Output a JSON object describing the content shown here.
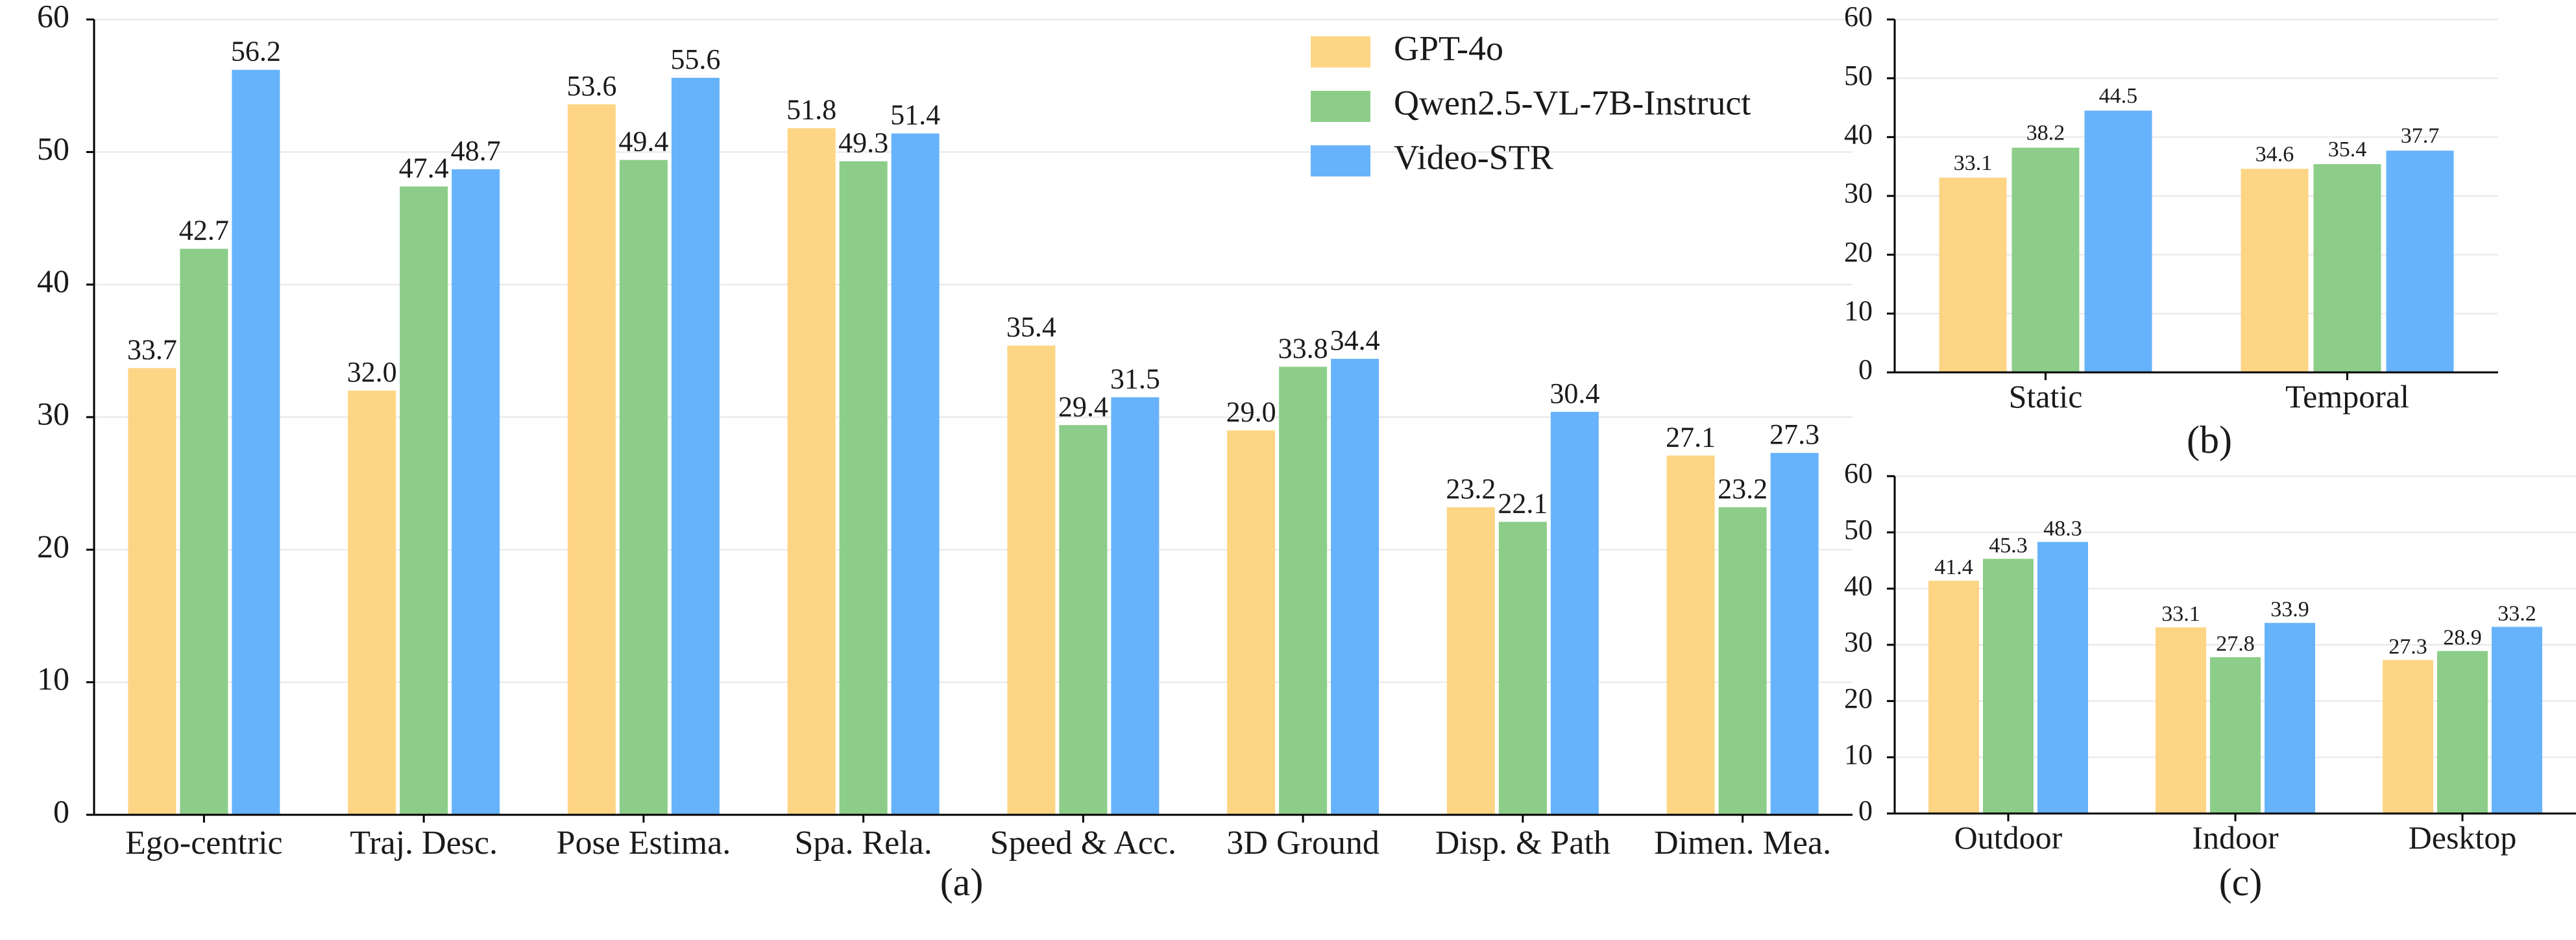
{
  "colors": {
    "gpt": "#fdd584",
    "qwen": "#8ccd89",
    "video": "#66b3fb"
  },
  "legend": [
    {
      "name": "GPT-4o",
      "color": "#fdd584"
    },
    {
      "name": "Qwen2.5-VL-7B-Instruct",
      "color": "#8ccd89"
    },
    {
      "name": "Video-STR",
      "color": "#66b3fb"
    }
  ],
  "chart_data": [
    {
      "id": "a",
      "type": "bar",
      "label": "(a)",
      "title": "",
      "xlabel": "",
      "ylabel": "",
      "ylim": [
        0,
        60
      ],
      "yticks": [
        0,
        10,
        20,
        30,
        40,
        50,
        60
      ],
      "grid": true,
      "legend_position": "top-right",
      "categories": [
        "Ego-centric",
        "Traj. Desc.",
        "Pose Estima.",
        "Spa. Rela.",
        "Speed & Acc.",
        "3D Ground",
        "Disp. & Path",
        "Dimen. Mea."
      ],
      "series": [
        {
          "name": "GPT-4o",
          "values": [
            33.7,
            32.0,
            53.6,
            51.8,
            35.4,
            29.0,
            23.2,
            27.1
          ]
        },
        {
          "name": "Qwen2.5-VL-7B-Instruct",
          "values": [
            42.7,
            47.4,
            49.4,
            49.3,
            29.4,
            33.8,
            22.1,
            23.2
          ]
        },
        {
          "name": "Video-STR",
          "values": [
            56.2,
            48.7,
            55.6,
            51.4,
            31.5,
            34.4,
            30.4,
            27.3
          ]
        }
      ]
    },
    {
      "id": "b",
      "type": "bar",
      "label": "(b)",
      "title": "",
      "xlabel": "",
      "ylabel": "",
      "ylim": [
        0,
        60
      ],
      "yticks": [
        0,
        10,
        20,
        30,
        40,
        50,
        60
      ],
      "grid": true,
      "categories": [
        "Static",
        "Temporal"
      ],
      "series": [
        {
          "name": "GPT-4o",
          "values": [
            33.1,
            34.6
          ]
        },
        {
          "name": "Qwen2.5-VL-7B-Instruct",
          "values": [
            38.2,
            35.4
          ]
        },
        {
          "name": "Video-STR",
          "values": [
            44.5,
            37.7
          ]
        }
      ]
    },
    {
      "id": "c",
      "type": "bar",
      "label": "(c)",
      "title": "",
      "xlabel": "",
      "ylabel": "",
      "ylim": [
        0,
        60
      ],
      "yticks": [
        0,
        10,
        20,
        30,
        40,
        50,
        60
      ],
      "grid": true,
      "categories": [
        "Outdoor",
        "Indoor",
        "Desktop"
      ],
      "series": [
        {
          "name": "GPT-4o",
          "values": [
            41.4,
            33.1,
            27.3
          ]
        },
        {
          "name": "Qwen2.5-VL-7B-Instruct",
          "values": [
            45.3,
            27.8,
            28.9
          ]
        },
        {
          "name": "Video-STR",
          "values": [
            48.3,
            33.9,
            33.2
          ]
        }
      ]
    }
  ]
}
